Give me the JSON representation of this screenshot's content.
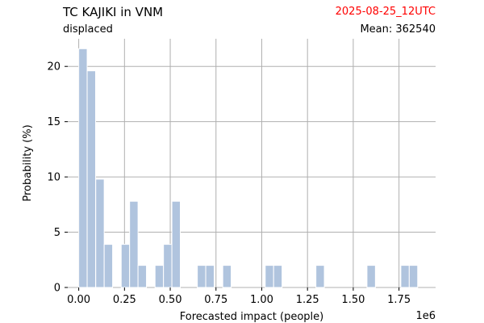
{
  "header": {
    "title": "TC KAJIKI in VNM",
    "subtitle": "displaced",
    "date": "2025-08-25_12UTC",
    "mean_label": "Mean: 362540"
  },
  "colors": {
    "bar": "#b0c4de",
    "grid": "#b0b0b0",
    "date_text": "#ff0000"
  },
  "chart_data": {
    "type": "bar",
    "title": "TC KAJIKI in VNM",
    "subtitle": "displaced",
    "xlabel": "Forecasted impact (people)",
    "ylabel": "Probability (%)",
    "x_multiplier_label": "1e6",
    "xlim": [
      -0.06,
      1.95
    ],
    "ylim": [
      0,
      22.5
    ],
    "xticks": [
      0.0,
      0.25,
      0.5,
      0.75,
      1.0,
      1.25,
      1.5,
      1.75
    ],
    "xtick_labels": [
      "0.00",
      "0.25",
      "0.50",
      "0.75",
      "1.00",
      "1.25",
      "1.50",
      "1.75"
    ],
    "yticks": [
      0,
      5,
      10,
      15,
      20
    ],
    "ytick_labels": [
      "0",
      "5",
      "10",
      "15",
      "20"
    ],
    "grid": true,
    "bin_width": 0.046,
    "x": [
      0.023,
      0.069,
      0.116,
      0.162,
      0.255,
      0.301,
      0.347,
      0.44,
      0.486,
      0.532,
      0.671,
      0.717,
      0.81,
      1.042,
      1.088,
      1.319,
      1.598,
      1.783,
      1.829
    ],
    "values": [
      21.6,
      19.6,
      9.8,
      3.9,
      3.9,
      7.8,
      2.0,
      2.0,
      3.9,
      7.8,
      2.0,
      2.0,
      2.0,
      2.0,
      2.0,
      2.0,
      2.0,
      2.0,
      2.0
    ]
  }
}
